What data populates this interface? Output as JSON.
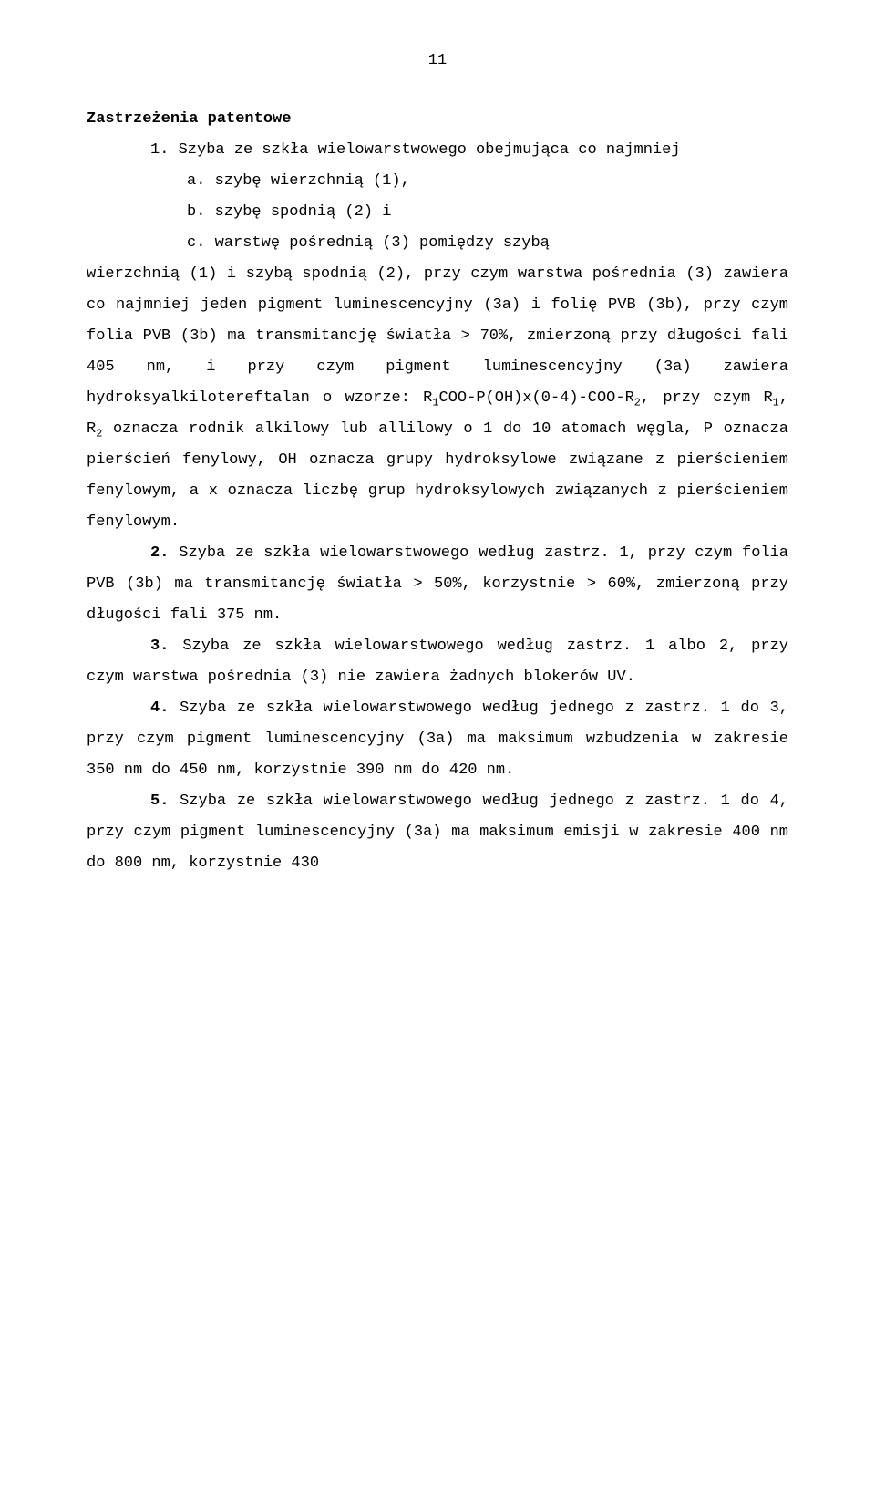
{
  "pageNumber": "11",
  "title": "Zastrzeżenia patentowe",
  "lead1": "1. Szyba ze szkła wielowarstwowego obejmująca co najmniej",
  "itemA": "a.  szybę wierzchnią (1),",
  "itemB": "b.  szybę spodnią (2) i",
  "itemC_prefix": "c.  warstwę pośrednią (3) pomiędzy szybą",
  "body1a": "wierzchnią (1) i szybą spodnią (2), przy czym warstwa pośrednia (3) zawiera co najmniej jeden pigment luminescencyjny (3a) i folię PVB (3b), przy czym folia PVB (3b) ma transmitancję światła > 70%, zmierzoną przy długości fali 405 nm, i przy czym pigment luminescencyjny (3a) zawiera hydroksyalkilotereftalan o wzorze: R",
  "body1b": "COO-P(OH)x(0-4)-COO-R",
  "body1c": ", przy czym R",
  "body1d": ", R",
  "body1e": " oznacza rodnik alkilowy lub allilowy o 1 do 10 atomach węgla, P oznacza pierścień fenylowy, OH oznacza grupy hydroksylowe związane z pierścieniem fenylowym, a x oznacza liczbę grup hydroksylowych związanych z pierścieniem fenylowym.",
  "claim2_head": "2.",
  "claim2": " Szyba ze szkła wielowarstwowego według zastrz. 1, przy czym folia PVB (3b) ma transmitancję światła > 50%, korzystnie > 60%, zmierzoną przy długości fali 375 nm.",
  "claim3_head": "3.",
  "claim3": " Szyba ze szkła wielowarstwowego według zastrz. 1 albo 2, przy czym warstwa pośrednia (3) nie zawiera żadnych blokerów UV.",
  "claim4_head": "4.",
  "claim4": " Szyba ze szkła wielowarstwowego według jednego z zastrz. 1 do 3, przy czym pigment luminescencyjny (3a) ma maksimum wzbudzenia w zakresie 350 nm do 450 nm, korzystnie 390 nm do 420 nm.",
  "claim5_head": "5.",
  "claim5": " Szyba ze szkła wielowarstwowego według jednego z zastrz. 1 do 4, przy czym pigment luminescencyjny (3a) ma maksimum emisji w zakresie 400 nm do 800 nm, korzystnie 430",
  "sub1": "1",
  "sub2": "2"
}
